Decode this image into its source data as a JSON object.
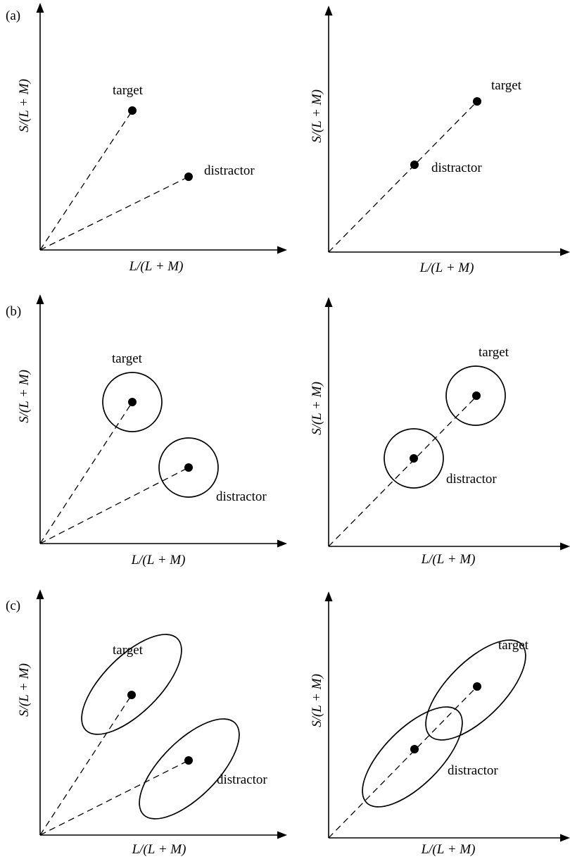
{
  "figure": {
    "rows": [
      {
        "tag": "(a)",
        "panels": [
          {
            "x_label": "L/(L + M)",
            "y_label": "S/(L + M)",
            "target_label": "target",
            "distractor_label": "distractor",
            "noise": "none"
          },
          {
            "x_label": "L/(L + M)",
            "y_label": "S/(L + M)",
            "target_label": "target",
            "distractor_label": "distractor",
            "noise": "none"
          }
        ]
      },
      {
        "tag": "(b)",
        "panels": [
          {
            "x_label": "L/(L + M)",
            "y_label": "S/(L + M)",
            "target_label": "target",
            "distractor_label": "distractor",
            "noise": "circle"
          },
          {
            "x_label": "L/(L + M)",
            "y_label": "S/(L + M)",
            "target_label": "target",
            "distractor_label": "distractor",
            "noise": "circle"
          }
        ]
      },
      {
        "tag": "(c)",
        "panels": [
          {
            "x_label": "L/(L + M)",
            "y_label": "S/(L + M)",
            "target_label": "target",
            "distractor_label": "distractor",
            "noise": "ellipse"
          },
          {
            "x_label": "L/(L + M)",
            "y_label": "S/(L + M)",
            "target_label": "target",
            "distractor_label": "distractor",
            "noise": "ellipse"
          }
        ]
      }
    ]
  }
}
